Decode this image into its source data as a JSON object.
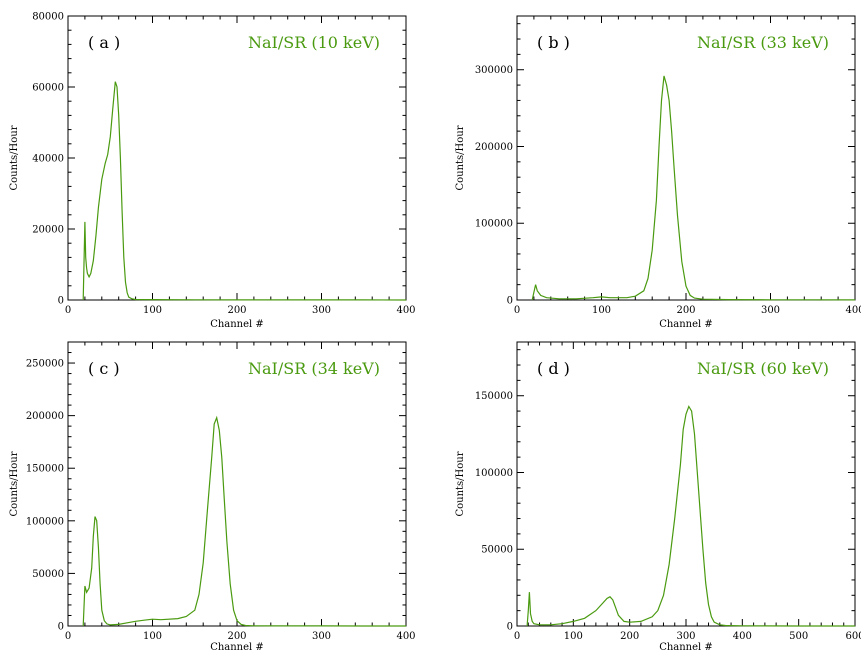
{
  "colors": {
    "series": "#4a9a10",
    "axis": "#000000"
  },
  "chart_data": [
    {
      "type": "line",
      "panel_label": "( a )",
      "title": "NaI/SR (10 keV)",
      "xlabel": "Channel #",
      "ylabel": "Counts/Hour",
      "xlim": [
        0,
        400
      ],
      "ylim": [
        0,
        80000
      ],
      "xticks": [
        0,
        100,
        200,
        300,
        400
      ],
      "yticks": [
        0,
        20000,
        40000,
        60000,
        80000
      ],
      "grid": false,
      "series": [
        {
          "x": [
            18,
            20,
            21,
            22,
            23,
            25,
            27,
            30,
            33,
            36,
            40,
            44,
            47,
            50,
            53,
            56,
            58,
            60,
            62,
            64,
            66,
            68,
            70,
            72,
            76,
            80,
            100,
            150,
            200,
            250,
            300,
            350,
            400
          ],
          "values": [
            0,
            22000,
            12000,
            9000,
            7500,
            6500,
            7500,
            11000,
            18000,
            26000,
            34000,
            38500,
            41000,
            46000,
            54000,
            61500,
            60000,
            52000,
            40000,
            25000,
            12000,
            5000,
            2000,
            800,
            300,
            150,
            120,
            60,
            40,
            25,
            20,
            15,
            10
          ]
        }
      ]
    },
    {
      "type": "line",
      "panel_label": "( b )",
      "title": "NaI/SR (33 keV)",
      "xlabel": "Channel #",
      "ylabel": "Counts/Hour",
      "xlim": [
        0,
        400
      ],
      "ylim": [
        0,
        370000
      ],
      "xticks": [
        0,
        100,
        200,
        300,
        400
      ],
      "yticks": [
        0,
        100000,
        200000,
        300000
      ],
      "grid": false,
      "series": [
        {
          "x": [
            18,
            20,
            22,
            24,
            28,
            35,
            50,
            70,
            90,
            100,
            110,
            130,
            140,
            150,
            155,
            160,
            165,
            168,
            171,
            174,
            177,
            180,
            183,
            186,
            190,
            195,
            200,
            205,
            210,
            220,
            250,
            300,
            350,
            400
          ],
          "values": [
            0,
            10000,
            20000,
            12000,
            6000,
            3000,
            1500,
            1500,
            3000,
            4000,
            3000,
            3000,
            5000,
            12000,
            28000,
            65000,
            130000,
            200000,
            260000,
            292000,
            280000,
            260000,
            220000,
            170000,
            110000,
            50000,
            18000,
            6000,
            2500,
            1000,
            500,
            300,
            200,
            100
          ]
        }
      ]
    },
    {
      "type": "line",
      "panel_label": "( c )",
      "title": "NaI/SR (34 keV)",
      "xlabel": "Channel #",
      "ylabel": "Counts/Hour",
      "xlim": [
        0,
        400
      ],
      "ylim": [
        0,
        270000
      ],
      "xticks": [
        0,
        100,
        200,
        300,
        400
      ],
      "yticks": [
        0,
        50000,
        100000,
        150000,
        200000,
        250000
      ],
      "grid": false,
      "series": [
        {
          "x": [
            18,
            20,
            22,
            25,
            28,
            30,
            32,
            34,
            36,
            38,
            40,
            43,
            46,
            50,
            60,
            70,
            80,
            90,
            100,
            110,
            130,
            140,
            150,
            155,
            160,
            165,
            170,
            173,
            176,
            179,
            182,
            185,
            188,
            192,
            196,
            200,
            205,
            210,
            220,
            250,
            300,
            350,
            400
          ],
          "values": [
            0,
            38000,
            32000,
            36000,
            55000,
            85000,
            104000,
            100000,
            75000,
            40000,
            15000,
            5000,
            2000,
            1000,
            1500,
            3000,
            4500,
            5500,
            6500,
            6000,
            7000,
            9000,
            15000,
            30000,
            60000,
            110000,
            160000,
            192000,
            198000,
            186000,
            160000,
            120000,
            80000,
            40000,
            15000,
            5000,
            1500,
            500,
            200,
            100,
            50,
            30,
            20
          ]
        }
      ]
    },
    {
      "type": "line",
      "panel_label": "( d )",
      "title": "NaI/SR (60 keV)",
      "xlabel": "Channel #",
      "ylabel": "Counts/Hour",
      "xlim": [
        0,
        600
      ],
      "ylim": [
        0,
        185000
      ],
      "xticks": [
        0,
        100,
        200,
        300,
        400,
        500,
        600
      ],
      "yticks": [
        0,
        50000,
        100000,
        150000
      ],
      "grid": false,
      "series": [
        {
          "x": [
            18,
            20,
            22,
            24,
            27,
            30,
            40,
            60,
            80,
            100,
            120,
            140,
            150,
            160,
            165,
            170,
            175,
            180,
            190,
            200,
            220,
            240,
            250,
            260,
            270,
            280,
            290,
            295,
            300,
            305,
            310,
            315,
            320,
            325,
            330,
            335,
            340,
            345,
            350,
            360,
            370,
            400,
            500,
            600
          ],
          "values": [
            0,
            10000,
            22000,
            8000,
            3000,
            1500,
            800,
            800,
            1500,
            3000,
            5000,
            10000,
            14000,
            18000,
            19000,
            17000,
            12000,
            7000,
            3000,
            2500,
            3000,
            6000,
            10000,
            20000,
            40000,
            70000,
            105000,
            128000,
            138000,
            143000,
            140000,
            125000,
            100000,
            75000,
            50000,
            28000,
            14000,
            6000,
            2500,
            800,
            300,
            100,
            30,
            10
          ]
        }
      ]
    }
  ]
}
